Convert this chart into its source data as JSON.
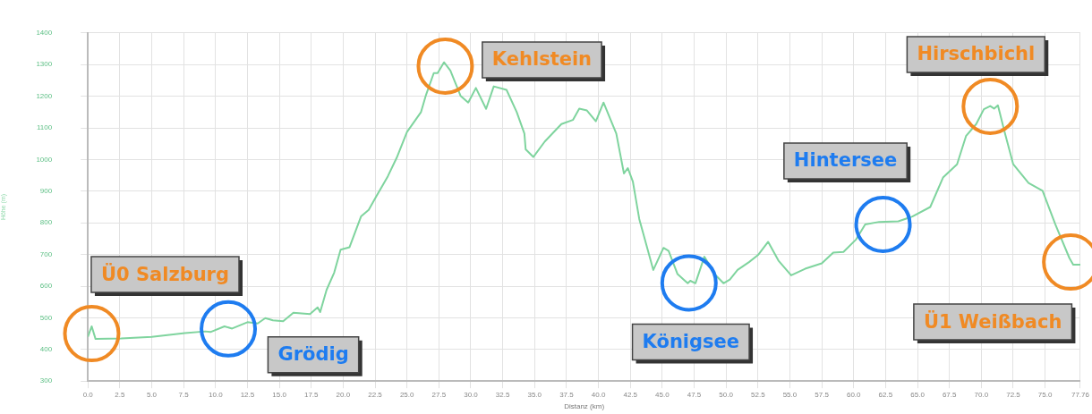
{
  "chart_data": {
    "type": "line",
    "xlabel": "Distanz (km)",
    "ylabel": "Höhe (m)",
    "xlim": [
      0,
      77.76
    ],
    "ylim": [
      300,
      1400
    ],
    "xticks": [
      {
        "value": 0,
        "label": "0.0"
      },
      {
        "value": 2.5,
        "label": "2.5"
      },
      {
        "value": 5,
        "label": "5.0"
      },
      {
        "value": 7.5,
        "label": "7.5"
      },
      {
        "value": 10,
        "label": "10.0"
      },
      {
        "value": 12.5,
        "label": "12.5"
      },
      {
        "value": 15,
        "label": "15.0"
      },
      {
        "value": 17.5,
        "label": "17.5"
      },
      {
        "value": 20,
        "label": "20.0"
      },
      {
        "value": 22.5,
        "label": "22.5"
      },
      {
        "value": 25,
        "label": "25.0"
      },
      {
        "value": 27.5,
        "label": "27.5"
      },
      {
        "value": 30,
        "label": "30.0"
      },
      {
        "value": 32.5,
        "label": "32.5"
      },
      {
        "value": 35,
        "label": "35.0"
      },
      {
        "value": 37.5,
        "label": "37.5"
      },
      {
        "value": 40,
        "label": "40.0"
      },
      {
        "value": 42.5,
        "label": "42.5"
      },
      {
        "value": 45,
        "label": "45.0"
      },
      {
        "value": 47.5,
        "label": "47.5"
      },
      {
        "value": 50,
        "label": "50.0"
      },
      {
        "value": 52.5,
        "label": "52.5"
      },
      {
        "value": 55,
        "label": "55.0"
      },
      {
        "value": 57.5,
        "label": "57.5"
      },
      {
        "value": 60,
        "label": "60.0"
      },
      {
        "value": 62.5,
        "label": "62.5"
      },
      {
        "value": 65,
        "label": "65.0"
      },
      {
        "value": 67.5,
        "label": "67.5"
      },
      {
        "value": 70,
        "label": "70.0"
      },
      {
        "value": 72.5,
        "label": "72.5"
      },
      {
        "value": 75,
        "label": "75.0"
      },
      77.76
    ],
    "yticks": [
      300,
      400,
      500,
      600,
      700,
      800,
      900,
      1000,
      1100,
      1200,
      1300,
      1400
    ],
    "grid": true,
    "legend": false,
    "marker": "none",
    "series": [
      {
        "color": "#7fd49e",
        "x": [
          0,
          0.3,
          0.6,
          2.6,
          5,
          7.6,
          9.2,
          9.6,
          10.7,
          11.3,
          12.5,
          13.3,
          13.9,
          14.5,
          15.3,
          16.1,
          17.4,
          18,
          18.2,
          18.7,
          19.3,
          19.8,
          20.5,
          21.4,
          22,
          22.6,
          23.5,
          24.2,
          25,
          26.1,
          26.5,
          27.1,
          27.4,
          27.9,
          28.4,
          29.2,
          29.8,
          30.4,
          31.2,
          31.8,
          32.8,
          33.6,
          34.2,
          34.3,
          34.9,
          35.8,
          37.1,
          38,
          38.5,
          39.1,
          39.8,
          40.4,
          41.4,
          42,
          42.3,
          42.7,
          43.2,
          44.3,
          45.1,
          45.5,
          46.2,
          47,
          47.2,
          47.6,
          48.3,
          49.2,
          49.8,
          50.3,
          50.9,
          51.8,
          52.5,
          53.3,
          54.1,
          55.1,
          56.2,
          57.5,
          58.4,
          59.2,
          60.2,
          60.9,
          62,
          63.5,
          64.6,
          66,
          67,
          68.1,
          68.8,
          69.6,
          70.2,
          70.7,
          71,
          71.3,
          71.8,
          72.5,
          73.7,
          74.8,
          75.8,
          76.9,
          77.2,
          77.76
        ],
        "values": [
          440,
          473,
          433,
          435,
          440,
          452,
          457,
          455,
          473,
          466,
          486,
          482,
          499,
          492,
          489,
          516,
          512,
          533,
          518,
          588,
          643,
          715,
          723,
          820,
          841,
          884,
          947,
          1006,
          1087,
          1150,
          1205,
          1273,
          1273,
          1307,
          1281,
          1201,
          1180,
          1226,
          1160,
          1231,
          1220,
          1150,
          1082,
          1032,
          1008,
          1057,
          1112,
          1125,
          1161,
          1155,
          1121,
          1180,
          1082,
          956,
          973,
          930,
          812,
          651,
          721,
          711,
          638,
          609,
          617,
          609,
          693,
          634,
          609,
          621,
          651,
          676,
          698,
          740,
          681,
          634,
          655,
          672,
          706,
          708,
          748,
          795,
          803,
          805,
          820,
          850,
          943,
          985,
          1074,
          1112,
          1159,
          1169,
          1161,
          1171,
          1091,
          985,
          926,
          901,
          795,
          689,
          668,
          668
        ]
      }
    ],
    "annotations": [
      {
        "text": "Ü0 Salzburg",
        "x": 0.3,
        "y": 450
      },
      {
        "text": "Grödig",
        "x": 11,
        "y": 465
      },
      {
        "text": "Kehlstein",
        "x": 28,
        "y": 1295
      },
      {
        "text": "Königsee",
        "x": 47.1,
        "y": 610
      },
      {
        "text": "Hintersee",
        "x": 62.3,
        "y": 795
      },
      {
        "text": "Hirschbichl",
        "x": 70.7,
        "y": 1168
      },
      {
        "text": "Ü1 Weißbach",
        "x": 77,
        "y": 676
      }
    ]
  }
}
